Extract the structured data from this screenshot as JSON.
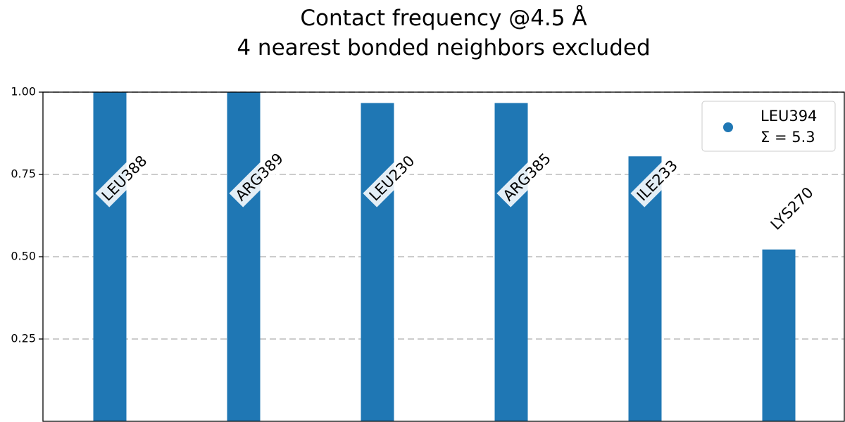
{
  "chart_data": {
    "type": "bar",
    "title": "Contact frequency @4.5 Å",
    "subtitle": "4 nearest bonded neighbors excluded",
    "xlabel": "",
    "ylabel": "",
    "categories": [
      "LEU388",
      "ARG389",
      "LEU230",
      "ARG385",
      "ILE233",
      "LYS270"
    ],
    "series": [
      {
        "name": "LEU394",
        "values": [
          1.0,
          1.0,
          0.967,
          0.967,
          0.805,
          0.522
        ]
      }
    ],
    "legend": {
      "entries": [
        "LEU394",
        "Σ = 5.3"
      ],
      "position": "top-right"
    },
    "ylim": [
      0.0,
      1.0
    ],
    "yticks": [
      0.25,
      0.5,
      0.75,
      1.0
    ],
    "ytick_labels": [
      "0.25",
      "0.50",
      "0.75",
      "1.00"
    ],
    "grid": "y-dashed",
    "bar_color": "#1f77b4",
    "grid_color": "#cccccc"
  }
}
